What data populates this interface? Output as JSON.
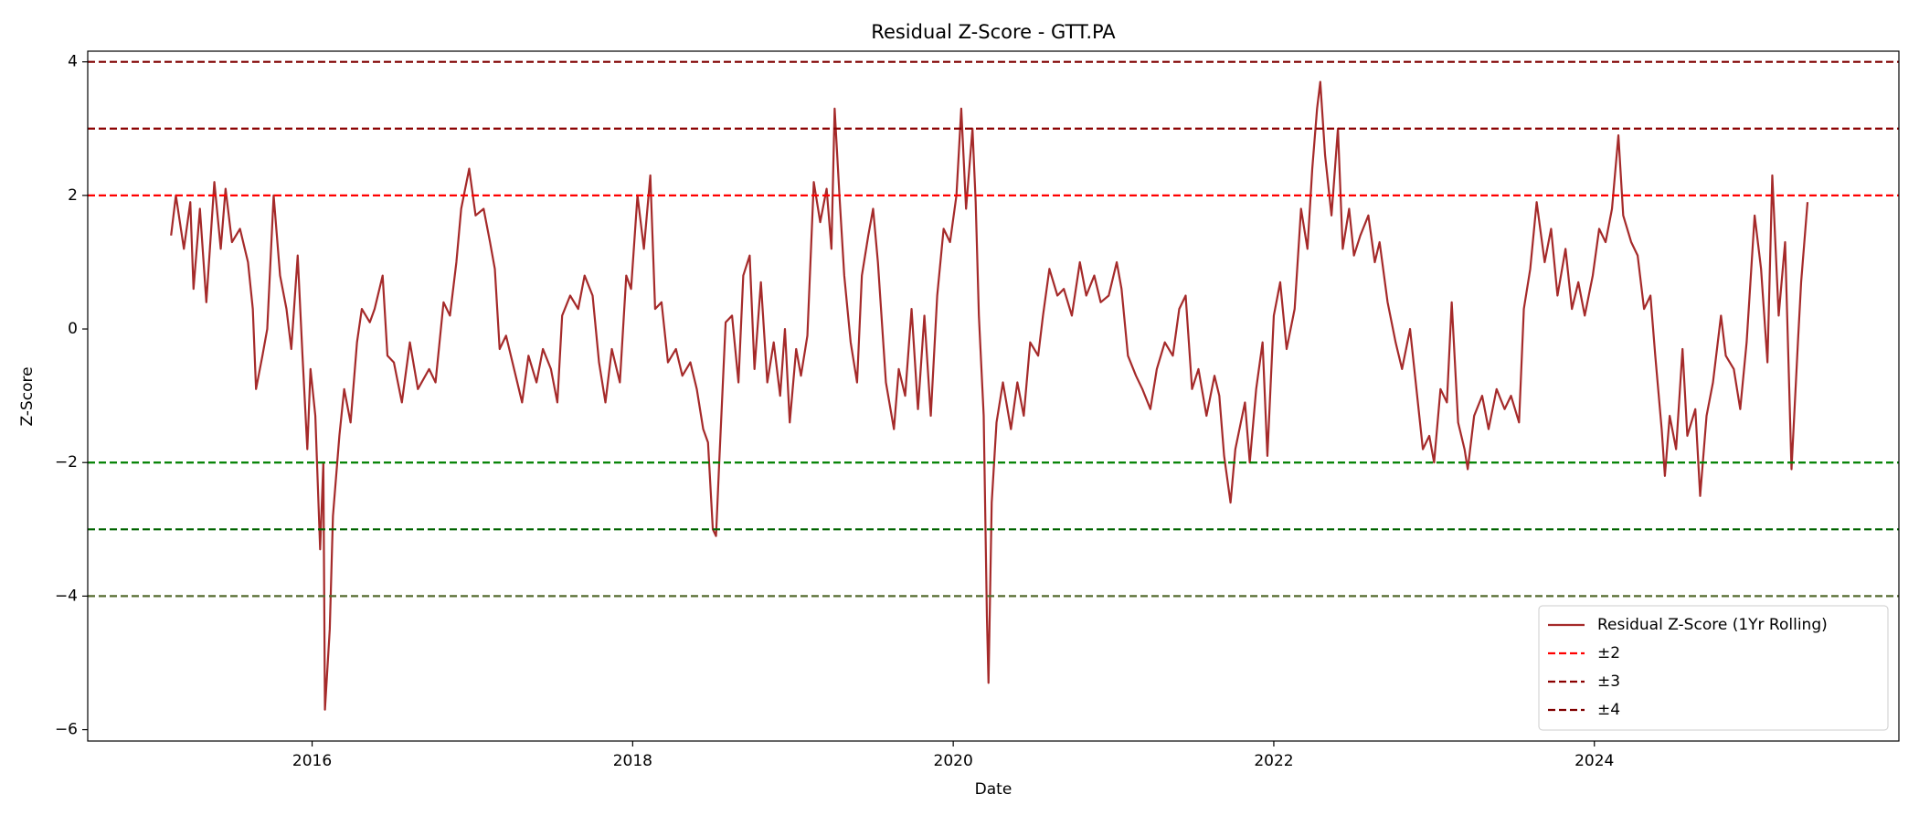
{
  "chart_data": {
    "type": "line",
    "title": "Residual Z-Score - GTT.PA",
    "xlabel": "Date",
    "ylabel": "Z-Score",
    "xlim": [
      2014.6,
      2025.9
    ],
    "ylim": [
      -6.17,
      4.16
    ],
    "xticks": [
      2016,
      2018,
      2020,
      2022,
      2024
    ],
    "yticks": [
      {
        "value": -6,
        "label": "−6"
      },
      {
        "value": -4,
        "label": "−4"
      },
      {
        "value": -2,
        "label": "−2"
      },
      0,
      2,
      4
    ],
    "grid": false,
    "legend": "lower right",
    "x": [
      2015.12,
      2015.15,
      2015.2,
      2015.24,
      2015.26,
      2015.3,
      2015.34,
      2015.39,
      2015.43,
      2015.46,
      2015.5,
      2015.55,
      2015.6,
      2015.63,
      2015.65,
      2015.69,
      2015.72,
      2015.76,
      2015.8,
      2015.84,
      2015.87,
      2015.91,
      2015.94,
      2015.97,
      2015.99,
      2016.02,
      2016.05,
      2016.07,
      2016.08,
      2016.11,
      2016.13,
      2016.17,
      2016.2,
      2016.24,
      2016.28,
      2016.31,
      2016.36,
      2016.39,
      2016.44,
      2016.47,
      2016.51,
      2016.56,
      2016.61,
      2016.66,
      2016.73,
      2016.77,
      2016.82,
      2016.86,
      2016.9,
      2016.93,
      2016.98,
      2017.02,
      2017.07,
      2017.11,
      2017.14,
      2017.17,
      2017.21,
      2017.26,
      2017.31,
      2017.35,
      2017.4,
      2017.44,
      2017.49,
      2017.53,
      2017.56,
      2017.61,
      2017.66,
      2017.7,
      2017.75,
      2017.79,
      2017.83,
      2017.87,
      2017.92,
      2017.96,
      2017.99,
      2018.03,
      2018.07,
      2018.11,
      2018.14,
      2018.18,
      2018.22,
      2018.27,
      2018.31,
      2018.36,
      2018.4,
      2018.44,
      2018.47,
      2018.5,
      2018.52,
      2018.54,
      2018.58,
      2018.62,
      2018.66,
      2018.69,
      2018.73,
      2018.76,
      2018.8,
      2018.84,
      2018.88,
      2018.92,
      2018.95,
      2018.98,
      2019.02,
      2019.05,
      2019.09,
      2019.13,
      2019.17,
      2019.21,
      2019.24,
      2019.26,
      2019.29,
      2019.32,
      2019.36,
      2019.4,
      2019.43,
      2019.47,
      2019.5,
      2019.53,
      2019.58,
      2019.63,
      2019.66,
      2019.7,
      2019.74,
      2019.78,
      2019.82,
      2019.86,
      2019.9,
      2019.94,
      2019.98,
      2020.02,
      2020.05,
      2020.08,
      2020.12,
      2020.14,
      2020.16,
      2020.19,
      2020.21,
      2020.22,
      2020.24,
      2020.27,
      2020.31,
      2020.36,
      2020.4,
      2020.44,
      2020.48,
      2020.53,
      2020.56,
      2020.6,
      2020.65,
      2020.69,
      2020.74,
      2020.79,
      2020.83,
      2020.88,
      2020.92,
      2020.97,
      2021.02,
      2021.05,
      2021.09,
      2021.14,
      2021.18,
      2021.23,
      2021.27,
      2021.32,
      2021.37,
      2021.41,
      2021.45,
      2021.49,
      2021.53,
      2021.58,
      2021.63,
      2021.66,
      2021.69,
      2021.73,
      2021.76,
      2021.82,
      2021.85,
      2021.89,
      2021.93,
      2021.96,
      2022.0,
      2022.04,
      2022.08,
      2022.13,
      2022.17,
      2022.21,
      2022.24,
      2022.27,
      2022.29,
      2022.32,
      2022.36,
      2022.4,
      2022.43,
      2022.47,
      2022.5,
      2022.54,
      2022.59,
      2022.63,
      2022.66,
      2022.71,
      2022.76,
      2022.8,
      2022.85,
      2022.89,
      2022.93,
      2022.97,
      2023.0,
      2023.04,
      2023.08,
      2023.11,
      2023.15,
      2023.19,
      2023.21,
      2023.25,
      2023.3,
      2023.34,
      2023.39,
      2023.44,
      2023.48,
      2023.53,
      2023.56,
      2023.6,
      2023.64,
      2023.69,
      2023.73,
      2023.77,
      2023.82,
      2023.86,
      2023.9,
      2023.94,
      2023.99,
      2024.03,
      2024.07,
      2024.11,
      2024.15,
      2024.18,
      2024.23,
      2024.27,
      2024.31,
      2024.35,
      2024.38,
      2024.42,
      2024.44,
      2024.47,
      2024.51,
      2024.55,
      2024.58,
      2024.63,
      2024.66,
      2024.7,
      2024.74,
      2024.79,
      2024.82,
      2024.87,
      2024.91,
      2024.95,
      2025.0,
      2025.04,
      2025.08,
      2025.11,
      2025.15,
      2025.19,
      2025.23,
      2025.27,
      2025.29,
      2025.33
    ],
    "series": [
      {
        "name": "Residual Z-Score (1Yr Rolling)",
        "color": "#a52a2a",
        "values": [
          1.4,
          2.0,
          1.2,
          1.9,
          0.6,
          1.8,
          0.4,
          2.2,
          1.2,
          2.1,
          1.3,
          1.5,
          1.0,
          0.3,
          -0.9,
          -0.4,
          0.0,
          2.0,
          0.8,
          0.3,
          -0.3,
          1.1,
          -0.4,
          -1.8,
          -0.6,
          -1.3,
          -3.3,
          -2.0,
          -5.7,
          -4.5,
          -2.8,
          -1.6,
          -0.9,
          -1.4,
          -0.2,
          0.3,
          0.1,
          0.3,
          0.8,
          -0.4,
          -0.5,
          -1.1,
          -0.2,
          -0.9,
          -0.6,
          -0.8,
          0.4,
          0.2,
          1.0,
          1.8,
          2.4,
          1.7,
          1.8,
          1.3,
          0.9,
          -0.3,
          -0.1,
          -0.6,
          -1.1,
          -0.4,
          -0.8,
          -0.3,
          -0.6,
          -1.1,
          0.2,
          0.5,
          0.3,
          0.8,
          0.5,
          -0.5,
          -1.1,
          -0.3,
          -0.8,
          0.8,
          0.6,
          2.0,
          1.2,
          2.3,
          0.3,
          0.4,
          -0.5,
          -0.3,
          -0.7,
          -0.5,
          -0.9,
          -1.5,
          -1.7,
          -3.0,
          -3.1,
          -2.0,
          0.1,
          0.2,
          -0.8,
          0.8,
          1.1,
          -0.6,
          0.7,
          -0.8,
          -0.2,
          -1.0,
          0.0,
          -1.4,
          -0.3,
          -0.7,
          -0.1,
          2.2,
          1.6,
          2.1,
          1.2,
          3.3,
          2.0,
          0.8,
          -0.2,
          -0.8,
          0.8,
          1.4,
          1.8,
          1.0,
          -0.8,
          -1.5,
          -0.6,
          -1.0,
          0.3,
          -1.2,
          0.2,
          -1.3,
          0.5,
          1.5,
          1.3,
          2.0,
          3.3,
          1.8,
          3.0,
          1.9,
          0.2,
          -1.3,
          -4.3,
          -5.3,
          -2.6,
          -1.4,
          -0.8,
          -1.5,
          -0.8,
          -1.3,
          -0.2,
          -0.4,
          0.2,
          0.9,
          0.5,
          0.6,
          0.2,
          1.0,
          0.5,
          0.8,
          0.4,
          0.5,
          1.0,
          0.6,
          -0.4,
          -0.7,
          -0.9,
          -1.2,
          -0.6,
          -0.2,
          -0.4,
          0.3,
          0.5,
          -0.9,
          -0.6,
          -1.3,
          -0.7,
          -1.0,
          -1.9,
          -2.6,
          -1.8,
          -1.1,
          -2.0,
          -0.9,
          -0.2,
          -1.9,
          0.2,
          0.7,
          -0.3,
          0.3,
          1.8,
          1.2,
          2.4,
          3.3,
          3.7,
          2.6,
          1.7,
          3.0,
          1.2,
          1.8,
          1.1,
          1.4,
          1.7,
          1.0,
          1.3,
          0.4,
          -0.2,
          -0.6,
          0.0,
          -0.9,
          -1.8,
          -1.6,
          -2.0,
          -0.9,
          -1.1,
          0.4,
          -1.4,
          -1.8,
          -2.1,
          -1.3,
          -1.0,
          -1.5,
          -0.9,
          -1.2,
          -1.0,
          -1.4,
          0.3,
          0.9,
          1.9,
          1.0,
          1.5,
          0.5,
          1.2,
          0.3,
          0.7,
          0.2,
          0.8,
          1.5,
          1.3,
          1.8,
          2.9,
          1.7,
          1.3,
          1.1,
          0.3,
          0.5,
          -0.4,
          -1.5,
          -2.2,
          -1.3,
          -1.8,
          -0.3,
          -1.6,
          -1.2,
          -2.5,
          -1.3,
          -0.8,
          0.2,
          -0.4,
          -0.6,
          -1.2,
          -0.2,
          1.7,
          0.9,
          -0.5,
          2.3,
          0.2,
          1.3,
          -2.1,
          -0.2,
          0.7,
          1.9
        ]
      }
    ],
    "reference_lines": [
      {
        "name": "±2",
        "values": [
          2,
          -2
        ],
        "colors": [
          "#ff0000",
          "#008000"
        ]
      },
      {
        "name": "±3",
        "values": [
          3,
          -3
        ],
        "colors": [
          "#8b0000",
          "#006400"
        ]
      },
      {
        "name": "±4",
        "values": [
          4,
          -4
        ],
        "colors": [
          "#800000",
          "#556b2f"
        ]
      }
    ]
  }
}
